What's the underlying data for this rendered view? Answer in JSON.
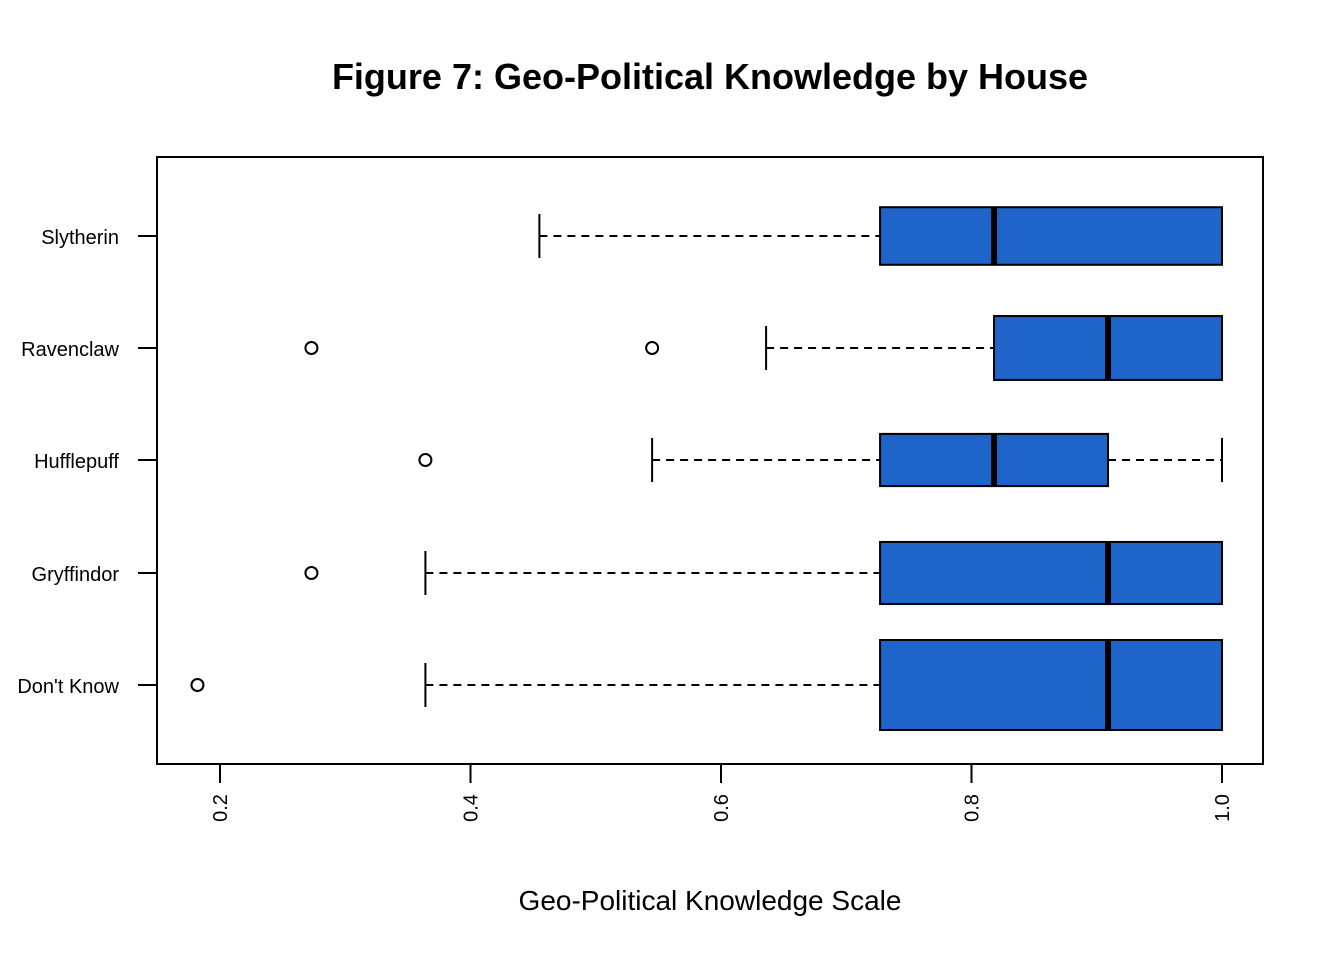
{
  "chart_data": {
    "type": "boxplot",
    "orientation": "horizontal",
    "title": "Figure 7: Geo-Political Knowledge by House",
    "xlabel": "Geo-Political Knowledge Scale",
    "ylabel": "",
    "xlim": [
      0.15,
      1.03
    ],
    "x_ticks": [
      0.2,
      0.4,
      0.6,
      0.8,
      1.0
    ],
    "x_tick_labels": [
      "0.2",
      "0.4",
      "0.6",
      "0.8",
      "1.0"
    ],
    "x_tick_labels_rotated": true,
    "box_fill_color": "#1f64c8",
    "outline_color": "#000000",
    "grid": false,
    "legend": "none",
    "categories": [
      "Don't Know",
      "Gryffindor",
      "Hufflepuff",
      "Ravenclaw",
      "Slytherin"
    ],
    "boxes": [
      {
        "category": "Don't Know",
        "whisker_low": 0.364,
        "q1": 0.727,
        "median": 0.909,
        "q3": 1.0,
        "whisker_high": 1.0,
        "outliers": [
          0.182
        ],
        "relative_width": 1.0
      },
      {
        "category": "Gryffindor",
        "whisker_low": 0.364,
        "q1": 0.727,
        "median": 0.909,
        "q3": 1.0,
        "whisker_high": 1.0,
        "outliers": [
          0.273
        ],
        "relative_width": 0.69
      },
      {
        "category": "Hufflepuff",
        "whisker_low": 0.545,
        "q1": 0.727,
        "median": 0.818,
        "q3": 0.909,
        "whisker_high": 1.0,
        "outliers": [
          0.364
        ],
        "relative_width": 0.58
      },
      {
        "category": "Ravenclaw",
        "whisker_low": 0.636,
        "q1": 0.818,
        "median": 0.909,
        "q3": 1.0,
        "whisker_high": 1.0,
        "outliers": [
          0.273,
          0.545
        ],
        "relative_width": 0.71
      },
      {
        "category": "Slytherin",
        "whisker_low": 0.455,
        "q1": 0.727,
        "median": 0.818,
        "q3": 1.0,
        "whisker_high": 1.0,
        "outliers": [],
        "relative_width": 0.64
      }
    ]
  }
}
